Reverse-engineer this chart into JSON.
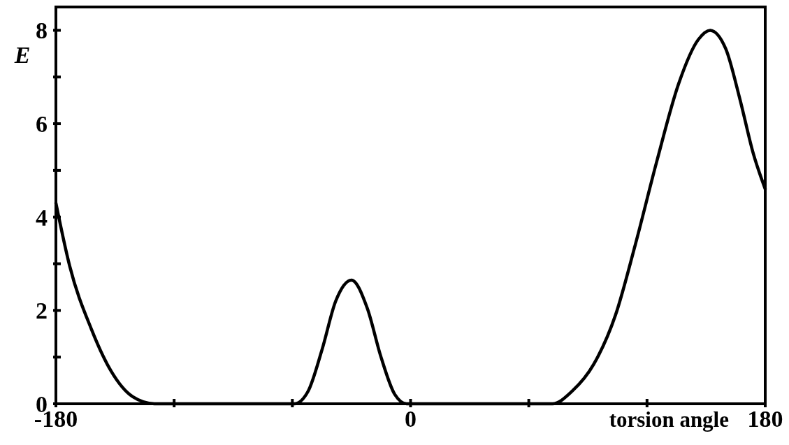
{
  "chart_data": {
    "type": "line",
    "xlabel": "torsion angle",
    "ylabel": "E",
    "x": [
      -180,
      -173,
      -162,
      -152,
      -141,
      -130,
      -100,
      -70,
      -59,
      -52,
      -45,
      -38,
      -30,
      -22,
      -15,
      -8,
      -2,
      20,
      50,
      72,
      82,
      93,
      104,
      114,
      125,
      136,
      146,
      152,
      160,
      167,
      174,
      180
    ],
    "series": [
      {
        "color": "#000000",
        "values": [
          4.3,
          2.95,
          1.6,
          0.7,
          0.15,
          0,
          0,
          0,
          0,
          0.27,
          1.15,
          2.2,
          2.65,
          2.05,
          1.0,
          0.2,
          0,
          0,
          0,
          0,
          0.27,
          0.85,
          1.9,
          3.4,
          5.2,
          6.85,
          7.8,
          8.0,
          7.6,
          6.55,
          5.35,
          4.6
        ]
      }
    ],
    "xlim": [
      -180,
      180
    ],
    "xticks": [
      -180,
      {
        "value": -120,
        "label": null
      },
      {
        "value": -60,
        "label": null
      },
      0,
      {
        "value": 60,
        "label": null
      },
      {
        "value": 120,
        "label": null
      },
      180
    ],
    "ylim": [
      0,
      8.5
    ],
    "yticks": [
      0,
      {
        "value": 1,
        "label": null
      },
      2,
      {
        "value": 3,
        "label": null
      },
      4,
      {
        "value": 5,
        "label": null
      },
      6,
      {
        "value": 7,
        "label": null
      },
      8
    ],
    "grid": false,
    "marker": "none",
    "line_style": "solid"
  }
}
